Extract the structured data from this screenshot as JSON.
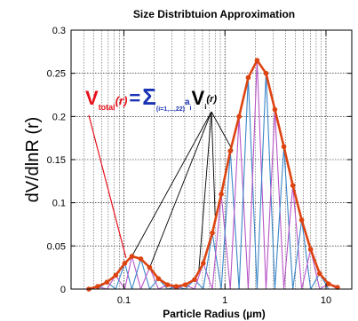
{
  "chart_data": {
    "type": "line",
    "title": "Size Distribtuion Approximation",
    "xlabel": "Particle Radius (µm)",
    "ylabel": "dV/dlnR (r)",
    "x_scale": "log",
    "xlim": [
      0.03,
      18
    ],
    "ylim": [
      0,
      0.3
    ],
    "x_ticks": [
      0.1,
      1,
      10
    ],
    "x_tick_labels": [
      "0.1",
      "1",
      "10"
    ],
    "y_ticks": [
      0,
      0.05,
      0.1,
      0.15,
      0.2,
      0.25,
      0.3
    ],
    "y_tick_labels": [
      "0",
      "0.05",
      "0.1",
      "0.15",
      "0.2",
      "0.25",
      "0.3"
    ],
    "grid": true,
    "colors": {
      "total": "#dd4411",
      "basis_blue": "#3a86c8",
      "basis_magenta": "#b955c8",
      "equation_red": "#e8101a",
      "equation_blue": "#1a32b4"
    },
    "series": [
      {
        "name": "V_total(r)",
        "x": [
          0.045,
          0.055,
          0.068,
          0.083,
          0.102,
          0.12,
          0.147,
          0.18,
          0.22,
          0.27,
          0.33,
          0.405,
          0.5,
          0.61,
          0.75,
          0.92,
          1.13,
          1.38,
          1.7,
          2.08,
          2.55,
          3.12,
          3.83,
          4.7,
          5.75,
          7.05,
          8.65,
          10.6,
          13.0
        ],
        "y": [
          0,
          0.003,
          0.008,
          0.016,
          0.03,
          0.038,
          0.035,
          0.025,
          0.012,
          0.005,
          0.003,
          0.005,
          0.011,
          0.03,
          0.065,
          0.11,
          0.16,
          0.2,
          0.245,
          0.265,
          0.25,
          0.208,
          0.165,
          0.12,
          0.08,
          0.046,
          0.018,
          0.006,
          0.002
        ]
      }
    ],
    "annotation": {
      "V": "V",
      "total_sub": "total",
      "r_arg": "(r)",
      "equals": "=",
      "sigma": "Σ",
      "sigma_sub": "(i=1,...,22)",
      "a": "a",
      "a_sub": "i",
      "Vi": "V",
      "Vi_sub": "i",
      "Vi_arg": "(r)"
    },
    "basis_functions": "22 triangular basis functions V_i(r) peaking at each node of the total curve, drawn alternately in blue and magenta"
  }
}
